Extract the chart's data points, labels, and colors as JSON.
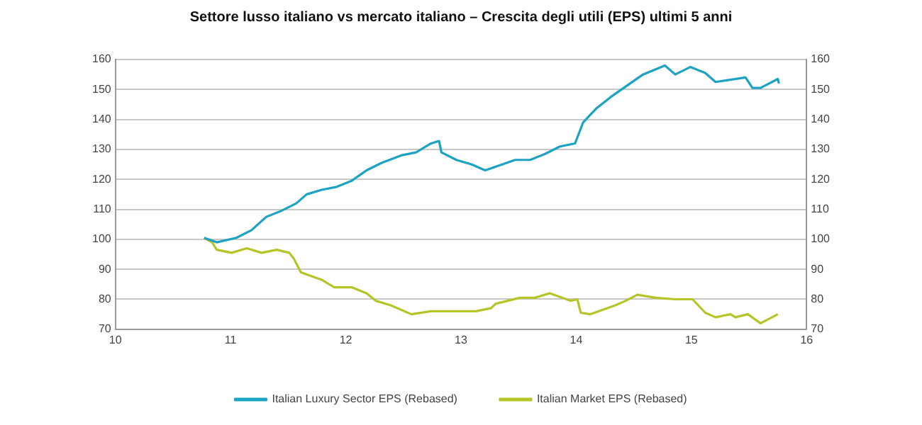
{
  "chart_data": {
    "type": "line",
    "title": "Settore lusso italiano vs mercato italiano – Crescita degli utili (EPS) ultimi 5 anni",
    "series": [
      {
        "name": "Italian Luxury Sector EPS (Rebased)",
        "color": "#1ca3c4",
        "x": [
          10.77,
          10.88,
          11.05,
          11.18,
          11.31,
          11.44,
          11.57,
          11.66,
          11.79,
          11.92,
          12.05,
          12.18,
          12.31,
          12.48,
          12.61,
          12.74,
          12.81,
          12.83,
          12.96,
          13.09,
          13.21,
          13.47,
          13.6,
          13.73,
          13.86,
          13.99,
          14.06,
          14.17,
          14.3,
          14.43,
          14.58,
          14.77,
          14.86,
          14.99,
          15.12,
          15.21,
          15.47,
          15.53,
          15.6,
          15.75,
          15.76
        ],
        "values": [
          100.5,
          99,
          100.5,
          103,
          107.5,
          109.5,
          112,
          115,
          116.5,
          117.5,
          119.5,
          123,
          125.5,
          128,
          129,
          132,
          132.8,
          129,
          126.5,
          125,
          123,
          126.5,
          126.5,
          128.5,
          131,
          132,
          139,
          143.5,
          147.5,
          151,
          155,
          158,
          155,
          157.5,
          155.5,
          152.5,
          154,
          150.5,
          150.5,
          153.5,
          152
        ]
      },
      {
        "name": "Italian Market EPS (Rebased)",
        "color": "#b5c527",
        "x": [
          10.77,
          10.84,
          10.88,
          11.01,
          11.14,
          11.27,
          11.4,
          11.51,
          11.55,
          11.61,
          11.79,
          11.9,
          12.05,
          12.18,
          12.26,
          12.39,
          12.57,
          12.74,
          12.96,
          13.13,
          13.26,
          13.3,
          13.51,
          13.64,
          13.77,
          13.95,
          14.01,
          14.04,
          14.12,
          14.34,
          14.43,
          14.53,
          14.69,
          14.86,
          15.01,
          15.12,
          15.21,
          15.34,
          15.38,
          15.49,
          15.6,
          15.75
        ],
        "values": [
          100.5,
          99,
          96.5,
          95.5,
          97,
          95.5,
          96.5,
          95.5,
          93.5,
          89,
          86.5,
          84,
          84,
          82,
          79.5,
          78,
          75,
          76,
          76,
          76,
          77,
          78.5,
          80.5,
          80.5,
          82,
          79.5,
          80,
          75.5,
          75,
          78,
          79.5,
          81.5,
          80.5,
          80,
          80,
          75.5,
          74,
          75,
          74,
          75,
          72,
          75
        ]
      }
    ],
    "xlim": [
      10,
      16
    ],
    "xticks": [
      10,
      11,
      12,
      13,
      14,
      15,
      16
    ],
    "ylim": [
      70,
      160
    ],
    "yticks": [
      70,
      80,
      90,
      100,
      110,
      120,
      130,
      140,
      150,
      160
    ],
    "y2lim": [
      70,
      160
    ],
    "y2ticks": [
      70,
      80,
      90,
      100,
      110,
      120,
      130,
      140,
      150,
      160
    ],
    "grid": "y",
    "legend": "bottom",
    "marker": "none",
    "line_style": "solid"
  }
}
